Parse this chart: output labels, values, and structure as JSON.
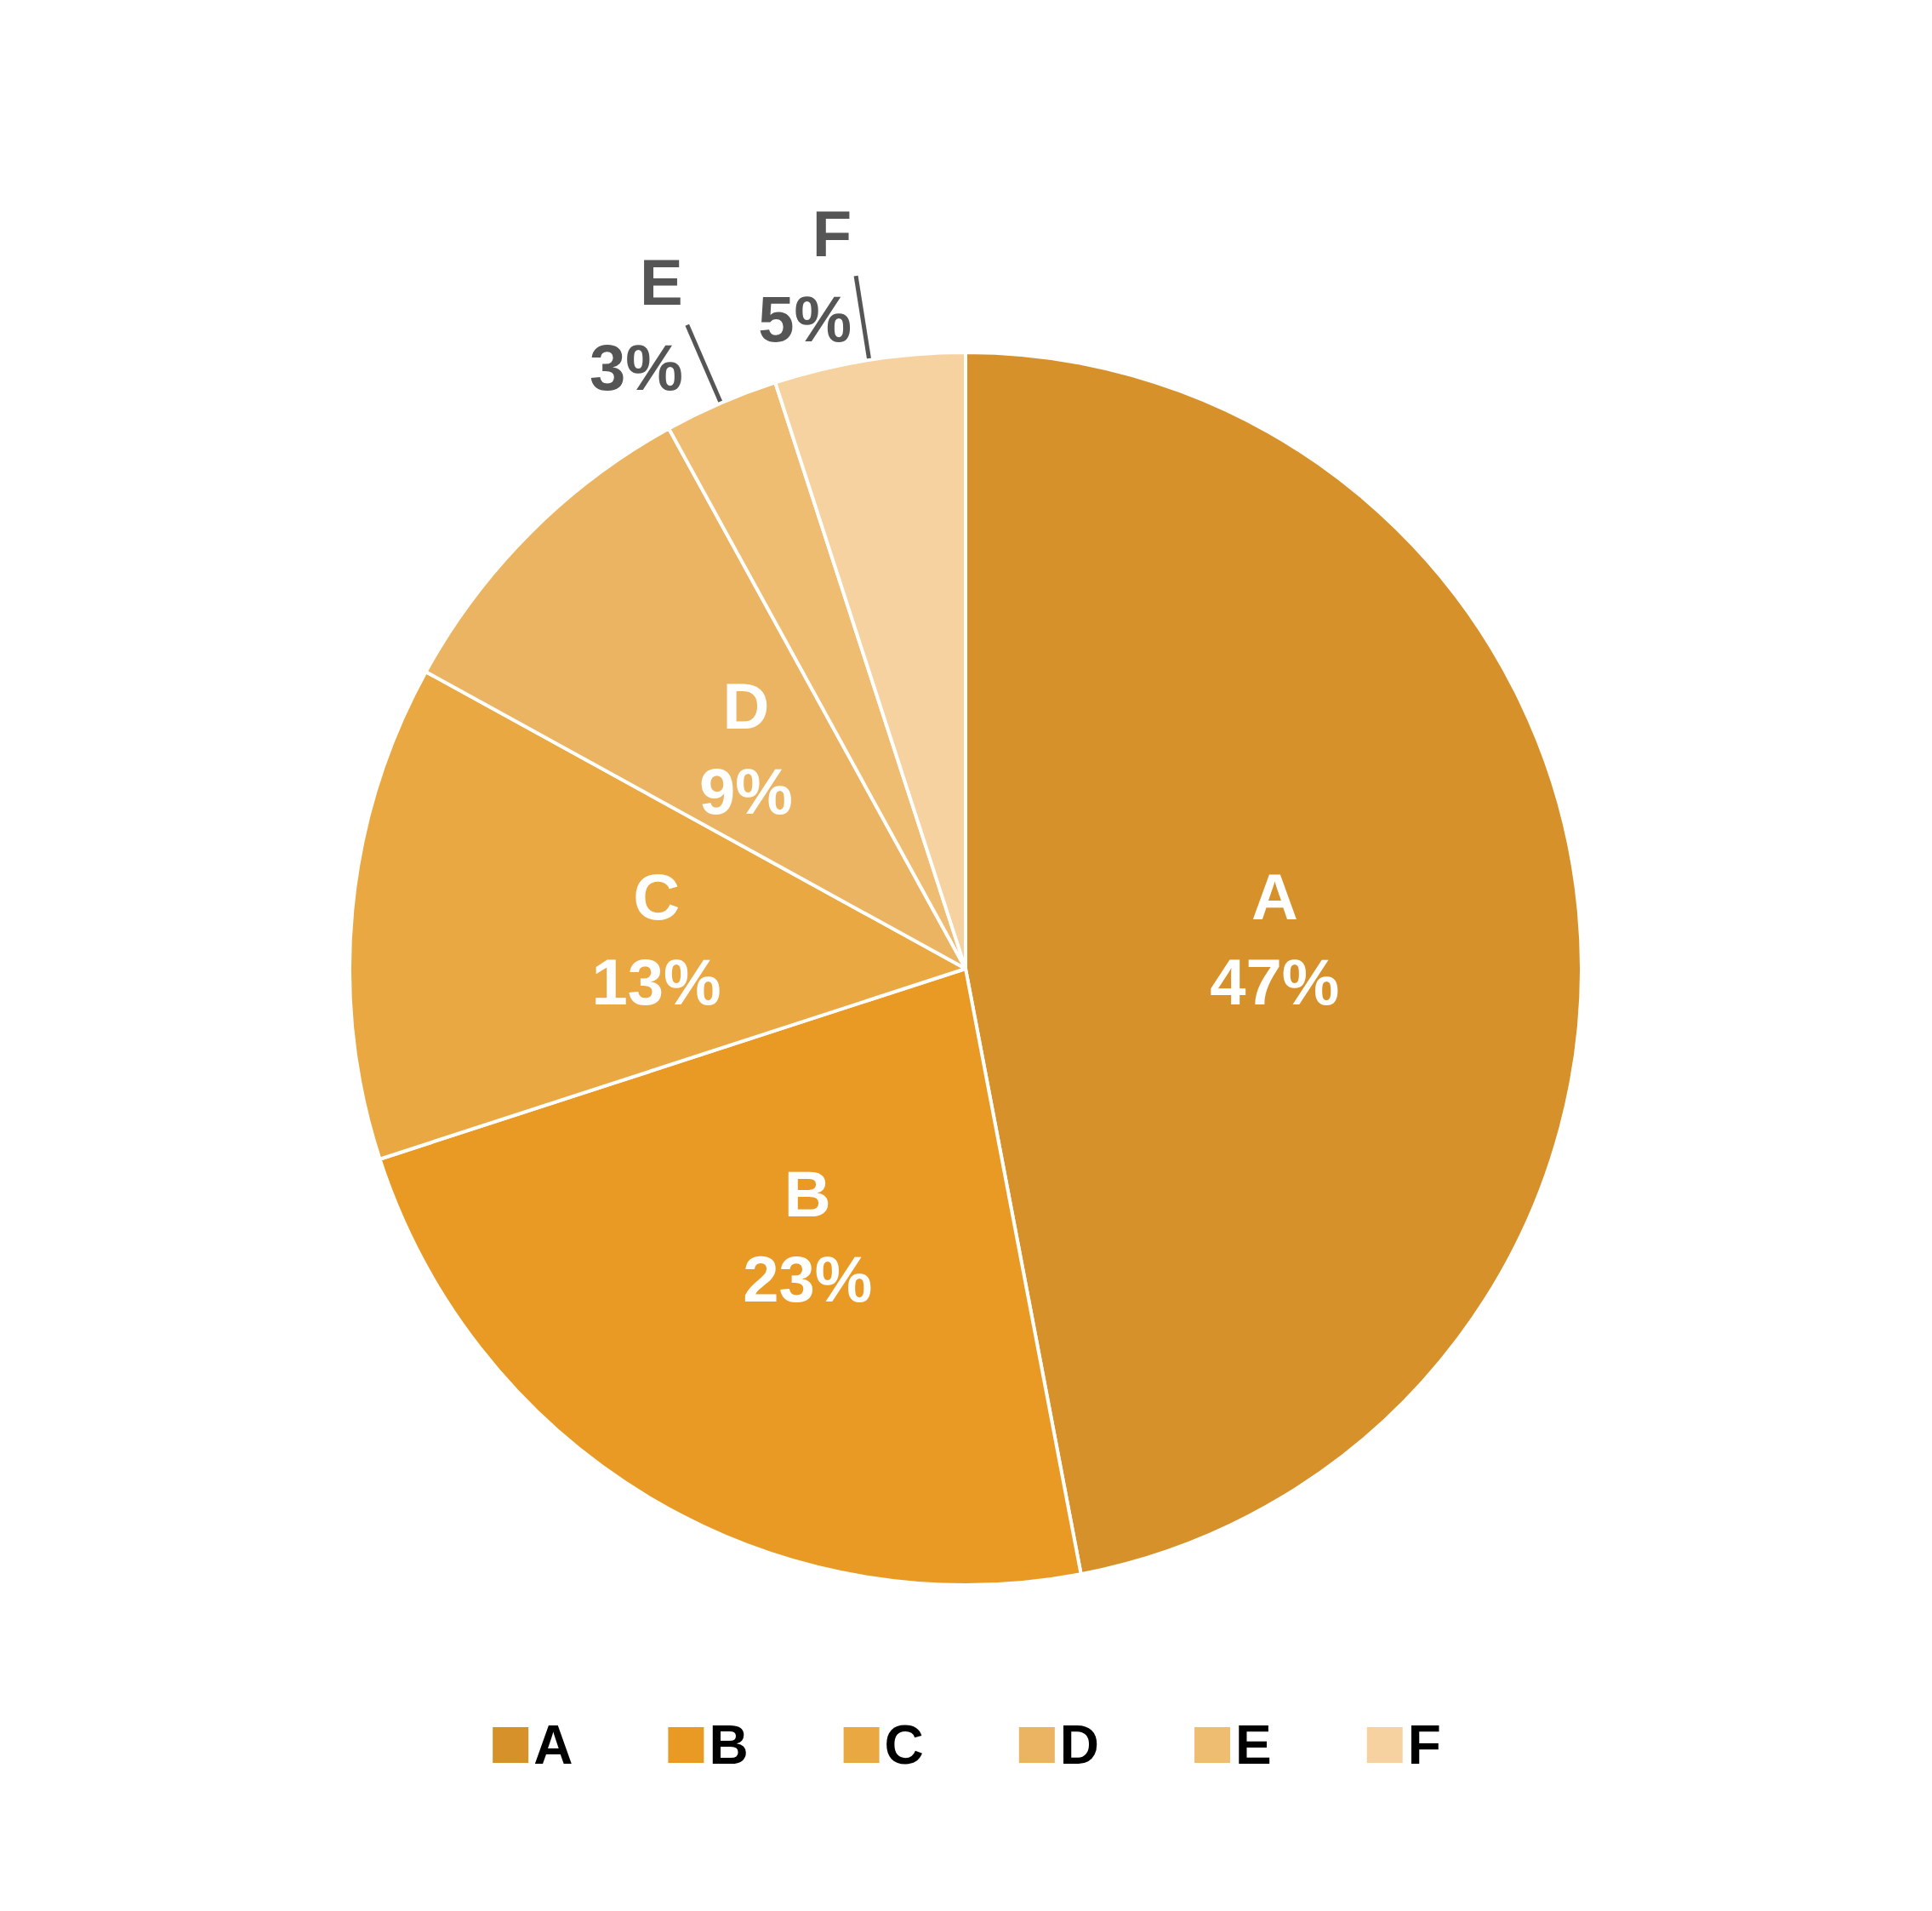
{
  "chart_data": {
    "type": "pie",
    "categories": [
      "A",
      "B",
      "C",
      "D",
      "E",
      "F"
    ],
    "values": [
      47,
      23,
      13,
      9,
      3,
      5
    ],
    "value_labels": [
      "47%",
      "23%",
      "13%",
      "9%",
      "3%",
      "5%"
    ],
    "colors": [
      "#d6912b",
      "#e89a25",
      "#e9a842",
      "#ebb462",
      "#efbd72",
      "#f5d2a0"
    ],
    "legend": "bottom"
  }
}
